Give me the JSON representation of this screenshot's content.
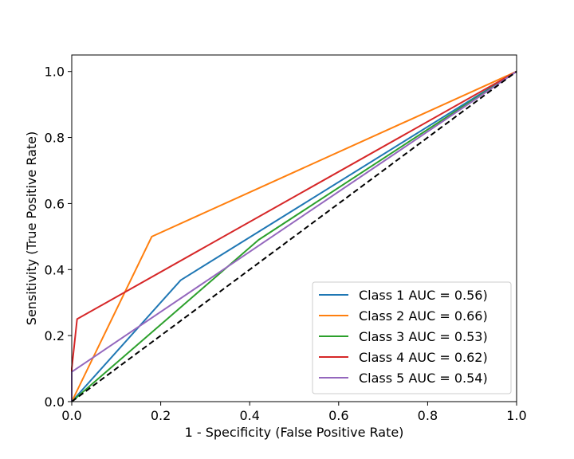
{
  "chart_data": {
    "type": "line",
    "title": "",
    "xlabel": "1 - Specificity (False Positive Rate)",
    "ylabel": "Sensitivity (True Positive Rate)",
    "xlim": [
      0,
      1
    ],
    "ylim": [
      0,
      1.05
    ],
    "x_ticks": [
      "0.0",
      "0.2",
      "0.4",
      "0.6",
      "0.8",
      "1.0"
    ],
    "y_ticks": [
      "0.0",
      "0.2",
      "0.4",
      "0.6",
      "0.8",
      "1.0"
    ],
    "grid": false,
    "legend_position": "lower-right",
    "series": [
      {
        "name": "Class 1 AUC = 0.56)",
        "color": "#1f77b4",
        "x": [
          0,
          0.245,
          1
        ],
        "y": [
          0,
          0.368,
          1
        ]
      },
      {
        "name": "Class 2 AUC = 0.66)",
        "color": "#ff7f0e",
        "x": [
          0,
          0.18,
          1
        ],
        "y": [
          0,
          0.5,
          1
        ]
      },
      {
        "name": "Class 3 AUC = 0.53)",
        "color": "#2ca02c",
        "x": [
          0,
          0.42,
          1
        ],
        "y": [
          0,
          0.49,
          1
        ]
      },
      {
        "name": "Class 4 AUC = 0.62)",
        "color": "#d62728",
        "x": [
          0,
          0.0,
          0.012,
          1
        ],
        "y": [
          0,
          0.1,
          0.25,
          1
        ]
      },
      {
        "name": "Class 5 AUC = 0.54)",
        "color": "#9467bd",
        "x": [
          0,
          0.0,
          1
        ],
        "y": [
          0,
          0.09,
          1
        ]
      }
    ],
    "reference_line": {
      "x": [
        0,
        1
      ],
      "y": [
        0,
        1
      ],
      "color": "#000000",
      "style": "dashed"
    }
  }
}
